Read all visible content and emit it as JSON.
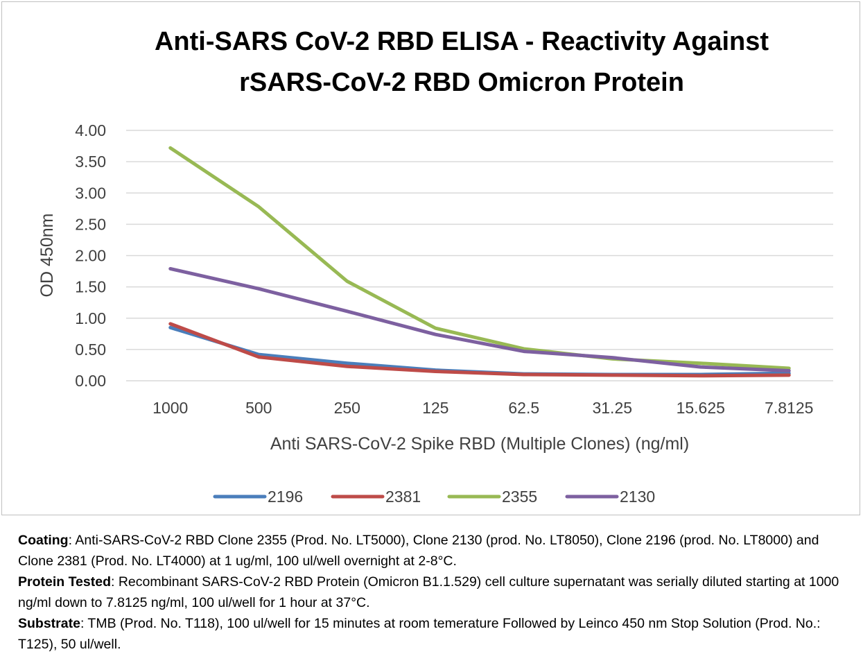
{
  "chart_data": {
    "type": "line",
    "title_line1": "Anti-SARS CoV-2 RBD ELISA - Reactivity Against",
    "title_line2": "rSARS-CoV-2 RBD Omicron Protein",
    "xlabel": "Anti SARS-CoV-2 Spike RBD (Multiple Clones) (ng/ml)",
    "ylabel": "OD 450nm",
    "categories": [
      "1000",
      "500",
      "250",
      "125",
      "62.5",
      "31.25",
      "15.625",
      "7.8125"
    ],
    "y_ticks": [
      "0.00",
      "0.50",
      "1.00",
      "1.50",
      "2.00",
      "2.50",
      "3.00",
      "3.50",
      "4.00"
    ],
    "ylim": [
      0,
      4
    ],
    "grid": true,
    "legend_position": "bottom",
    "series": [
      {
        "name": "2196",
        "color": "#4a7ebb",
        "values": [
          0.85,
          0.42,
          0.28,
          0.17,
          0.11,
          0.1,
          0.1,
          0.12
        ]
      },
      {
        "name": "2381",
        "color": "#be4b48",
        "values": [
          0.91,
          0.38,
          0.23,
          0.15,
          0.1,
          0.09,
          0.08,
          0.09
        ]
      },
      {
        "name": "2355",
        "color": "#98b954",
        "values": [
          3.72,
          2.78,
          1.59,
          0.84,
          0.51,
          0.35,
          0.28,
          0.2
        ]
      },
      {
        "name": "2130",
        "color": "#7d60a0",
        "values": [
          1.79,
          1.47,
          1.11,
          0.74,
          0.47,
          0.37,
          0.22,
          0.16
        ]
      }
    ]
  },
  "notes": {
    "coating_label": "Coating",
    "coating_text": ": Anti-SARS-CoV-2 RBD Clone 2355 (Prod. No. LT5000), Clone 2130 (prod. No. LT8050), Clone 2196 (prod. No. LT8000) and Clone 2381 (Prod. No. LT4000) at 1 ug/ml, 100 ul/well overnight at 2-8°C.",
    "protein_label": "Protein Tested",
    "protein_text": ": Recombinant SARS-CoV-2 RBD Protein (Omicron B1.1.529) cell culture supernatant was serially diluted starting at 1000 ng/ml down to 7.8125 ng/ml, 100 ul/well for 1 hour at 37°C.",
    "substrate_label": "Substrate",
    "substrate_text": ": TMB (Prod. No. T118), 100 ul/well for 15 minutes at room temerature Followed by Leinco 450 nm Stop Solution (Prod. No.: T125), 50 ul/well."
  }
}
